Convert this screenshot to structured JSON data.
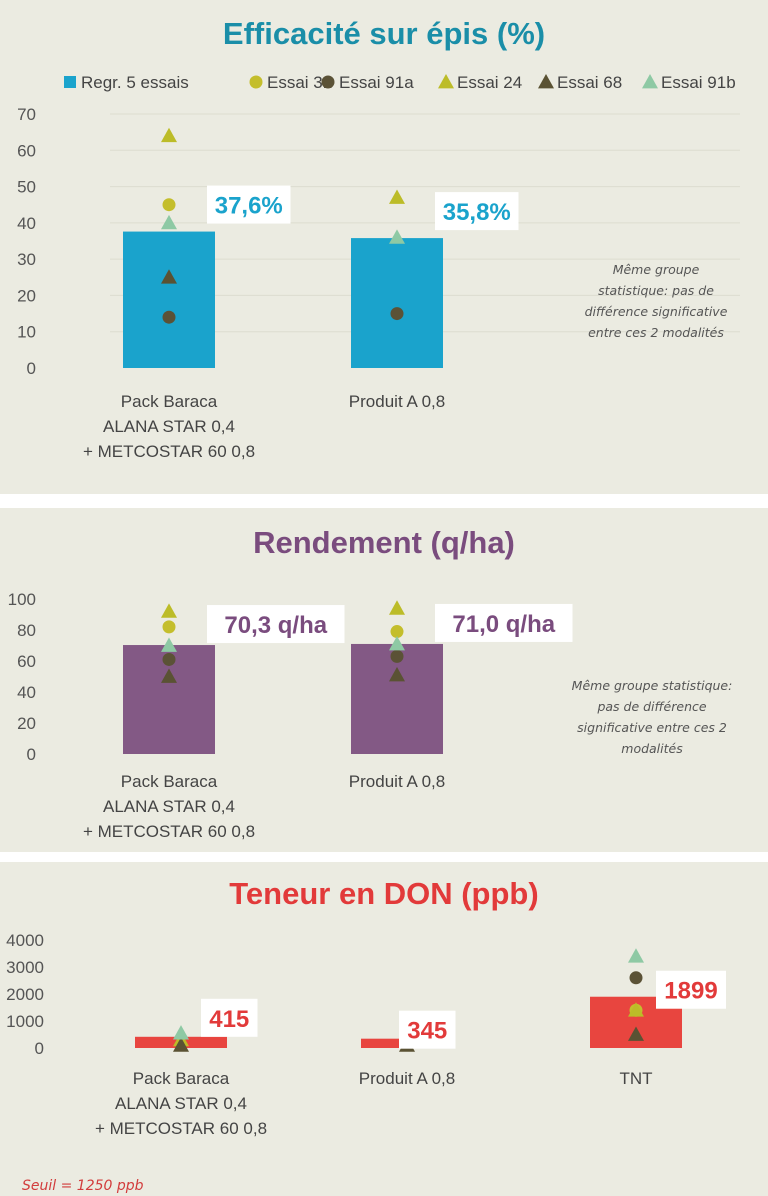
{
  "chart_data": [
    {
      "type": "bar",
      "title": "Efficacité sur épis (%)",
      "categories": [
        "Pack Baraca\nALANA STAR 0,4\n+ METCOSTAR 60 0,8",
        "Produit A  0,8"
      ],
      "series": [
        {
          "name": "Regr. 5 essais",
          "kind": "bar",
          "values": [
            37.6,
            35.8
          ]
        },
        {
          "name": "Essai 31",
          "kind": "circle",
          "values": [
            45,
            null
          ]
        },
        {
          "name": "Essai 91a",
          "kind": "circle",
          "values": [
            14,
            15
          ]
        },
        {
          "name": "Essai 24",
          "kind": "triangle",
          "values": [
            64,
            47
          ]
        },
        {
          "name": "Essai 68",
          "kind": "triangle",
          "values": [
            25,
            null
          ]
        },
        {
          "name": "Essai 91b",
          "kind": "triangle",
          "values": [
            40,
            36
          ]
        }
      ],
      "data_labels": [
        "37,6%",
        "35,8%"
      ],
      "yticks": [
        0,
        10,
        20,
        30,
        40,
        50,
        60,
        70
      ],
      "ylim": [
        0,
        70
      ],
      "grid": true,
      "legend": "top",
      "note": [
        "Même groupe",
        "statistique: pas de",
        "différence significative",
        "entre ces 2 modalités"
      ],
      "colors": {
        "title": "#1a8ea8",
        "bar": "#1aa3cc",
        "label": "#1aa3cc"
      }
    },
    {
      "type": "bar",
      "title": "Rendement  (q/ha)",
      "categories": [
        "Pack Baraca\nALANA STAR 0,4\n+ METCOSTAR 60 0,8",
        "Produit A  0,8"
      ],
      "series": [
        {
          "name": "Regr. 5 essais",
          "kind": "bar",
          "values": [
            70.3,
            71.0
          ]
        },
        {
          "name": "Essai 31",
          "kind": "circle",
          "values": [
            82,
            79
          ]
        },
        {
          "name": "Essai 91a",
          "kind": "circle",
          "values": [
            61,
            63
          ]
        },
        {
          "name": "Essai 24",
          "kind": "triangle",
          "values": [
            92,
            94
          ]
        },
        {
          "name": "Essai 68",
          "kind": "triangle",
          "values": [
            50,
            51
          ]
        },
        {
          "name": "Essai 91b",
          "kind": "triangle",
          "values": [
            70,
            71
          ]
        }
      ],
      "data_labels": [
        "70,3 q/ha",
        "71,0 q/ha"
      ],
      "yticks": [
        0,
        20,
        40,
        60,
        80,
        100
      ],
      "ylim": [
        0,
        100
      ],
      "grid": false,
      "note": [
        "Même groupe statistique:",
        "pas de différence",
        "significative entre ces 2",
        "modalités"
      ],
      "colors": {
        "title": "#7a4c7e",
        "bar": "#835985",
        "label": "#7a4c7e"
      }
    },
    {
      "type": "bar",
      "title": "Teneur en DON (ppb)",
      "categories": [
        "Pack Baraca\nALANA STAR 0,4\n+ METCOSTAR 60 0,8",
        "Produit A  0,8",
        "TNT"
      ],
      "series": [
        {
          "name": "Regr. 5 essais",
          "kind": "bar",
          "values": [
            415,
            345,
            1899
          ]
        },
        {
          "name": "Essai 31",
          "kind": "circle",
          "values": [
            null,
            null,
            1400
          ]
        },
        {
          "name": "Essai 91a",
          "kind": "circle",
          "values": [
            null,
            null,
            2600
          ]
        },
        {
          "name": "Essai 24",
          "kind": "triangle",
          "values": [
            300,
            250,
            1400
          ]
        },
        {
          "name": "Essai 68",
          "kind": "triangle",
          "values": [
            100,
            100,
            500
          ]
        },
        {
          "name": "Essai 91b",
          "kind": "triangle",
          "values": [
            550,
            300,
            3400
          ]
        }
      ],
      "data_labels": [
        "415",
        "345",
        "1899"
      ],
      "yticks": [
        0,
        1000,
        2000,
        3000,
        4000
      ],
      "ylim": [
        0,
        4000
      ],
      "grid": false,
      "footnote": "Seuil = 1250 ppb",
      "colors": {
        "title": "#e23a3a",
        "bar": "#e8453f",
        "label": "#e23a3a"
      }
    }
  ],
  "legend_colors": {
    "Regr. 5 essais": "#1aa3cc",
    "Essai 31": "#c4be2c",
    "Essai 91a": "#5b5236",
    "Essai 24": "#bcbc28",
    "Essai 68": "#5a5233",
    "Essai 91b": "#8ec9a4"
  }
}
